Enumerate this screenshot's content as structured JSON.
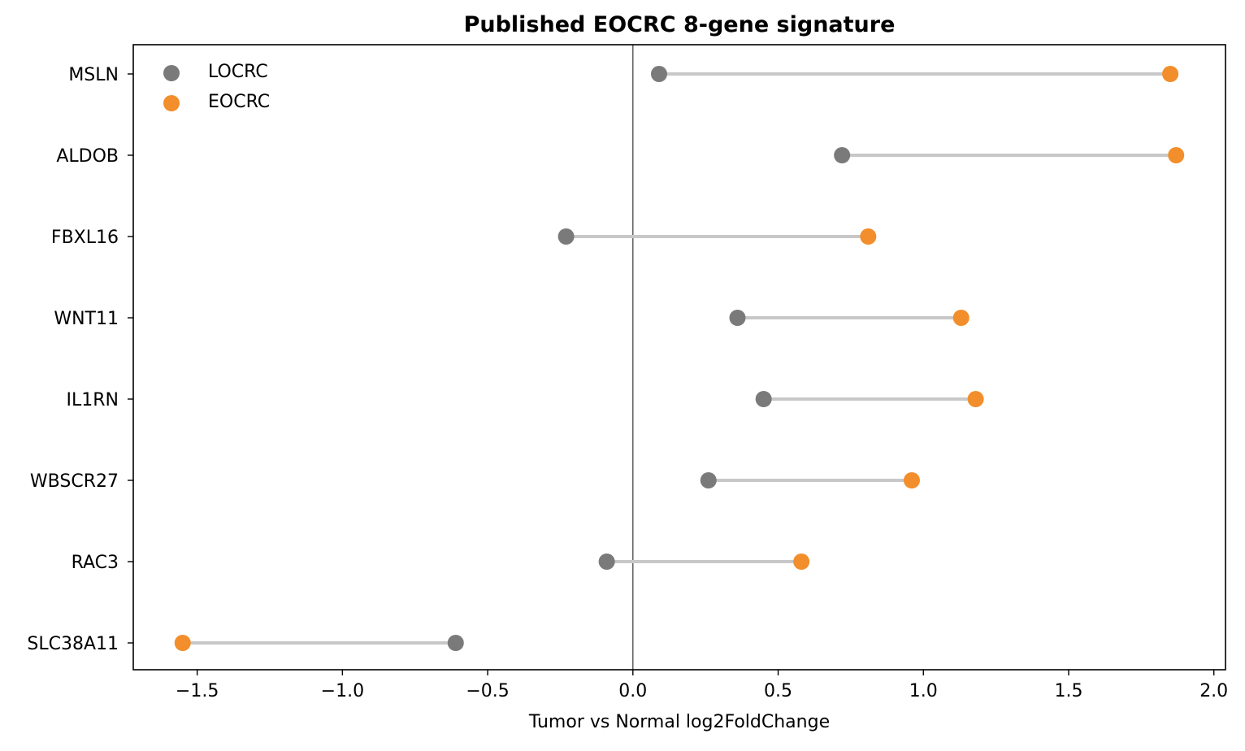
{
  "chart_data": {
    "type": "dumbbell",
    "title": "Published EOCRC 8-gene signature",
    "xlabel": "Tumor vs Normal log2FoldChange",
    "ylabel": "",
    "xlim": [
      -1.72,
      2.04
    ],
    "xticks": [
      -1.5,
      -1.0,
      -0.5,
      0.0,
      0.5,
      1.0,
      1.5,
      2.0
    ],
    "xtick_labels": [
      "−1.5",
      "−1.0",
      "−0.5",
      "0.0",
      "0.5",
      "1.0",
      "1.5",
      "2.0"
    ],
    "reference_line_x": 0,
    "grid": false,
    "legend_position": "top-left",
    "categories": [
      "MSLN",
      "ALDOB",
      "FBXL16",
      "WNT11",
      "IL1RN",
      "WBSCR27",
      "RAC3",
      "SLC38A11"
    ],
    "series": [
      {
        "name": "LOCRC",
        "color": "#7a7a7a",
        "values": [
          0.09,
          0.72,
          -0.23,
          0.36,
          0.45,
          0.26,
          -0.09,
          -0.61
        ]
      },
      {
        "name": "EOCRC",
        "color": "#f28e2b",
        "values": [
          1.85,
          1.87,
          0.81,
          1.13,
          1.18,
          0.96,
          0.58,
          -1.55
        ]
      }
    ],
    "connector_color": "#c8c8c8"
  }
}
